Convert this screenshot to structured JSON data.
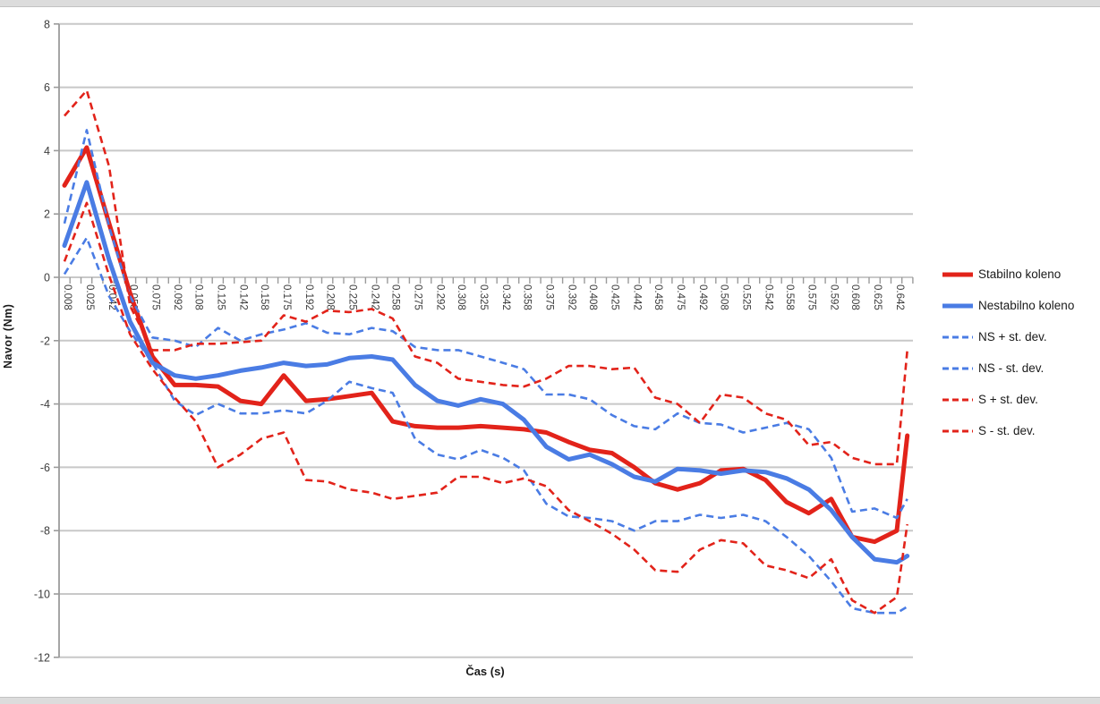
{
  "window": {
    "top_strip": "window-edge",
    "bottom_strip": "window-edge"
  },
  "chart_data": {
    "type": "line",
    "title": "",
    "xlabel": "Čas (s)",
    "ylabel": "Navor (Nm)",
    "ylim": [
      -12,
      8
    ],
    "grid": "horizontal",
    "legend_position": "right",
    "y_ticks": [
      8,
      6,
      4,
      2,
      0,
      -2,
      -4,
      -6,
      -8,
      -10,
      -12
    ],
    "x_tick_labels": [
      "0.008",
      "0.025",
      "0.042",
      "0.058",
      "0.075",
      "0.092",
      "0.108",
      "0.125",
      "0.142",
      "0.158",
      "0.175",
      "0.192",
      "0.208",
      "0.225",
      "0.242",
      "0.258",
      "0.275",
      "0.292",
      "0.308",
      "0.325",
      "0.342",
      "0.358",
      "0.375",
      "0.392",
      "0.408",
      "0.425",
      "0.442",
      "0.458",
      "0.475",
      "0.492",
      "0.508",
      "0.525",
      "0.542",
      "0.558",
      "0.575",
      "0.592",
      "0.608",
      "0.625",
      "0.642"
    ],
    "x": [
      0.008,
      0.025,
      0.042,
      0.058,
      0.075,
      0.092,
      0.108,
      0.125,
      0.142,
      0.158,
      0.175,
      0.192,
      0.208,
      0.225,
      0.242,
      0.258,
      0.275,
      0.292,
      0.308,
      0.325,
      0.342,
      0.358,
      0.375,
      0.392,
      0.408,
      0.425,
      0.442,
      0.458,
      0.475,
      0.492,
      0.508,
      0.525,
      0.542,
      0.558,
      0.575,
      0.592,
      0.608,
      0.625,
      0.642,
      0.65
    ],
    "colors": {
      "stable_red": "#e2231a",
      "unstable_blue": "#4a7ce4",
      "grid": "#c8c8c8",
      "axis": "#9b9b9b",
      "tick_text": "#3d3d3d"
    },
    "series": [
      {
        "name": "Stabilno koleno",
        "style": "solid",
        "color_key": "stable_red",
        "values": [
          2.9,
          4.1,
          1.7,
          -0.5,
          -2.5,
          -3.4,
          -3.4,
          -3.45,
          -3.9,
          -4.0,
          -3.1,
          -3.9,
          -3.85,
          -3.75,
          -3.65,
          -4.55,
          -4.7,
          -4.75,
          -4.75,
          -4.7,
          -4.75,
          -4.8,
          -4.9,
          -5.2,
          -5.45,
          -5.55,
          -6.0,
          -6.5,
          -6.7,
          -6.5,
          -6.1,
          -6.05,
          -6.4,
          -7.1,
          -7.45,
          -7.0,
          -8.2,
          -8.35,
          -8.0,
          -5.0
        ]
      },
      {
        "name": "Nestabilno koleno",
        "style": "solid",
        "color_key": "unstable_blue",
        "values": [
          1.0,
          3.0,
          0.55,
          -1.4,
          -2.7,
          -3.1,
          -3.2,
          -3.1,
          -2.95,
          -2.85,
          -2.7,
          -2.8,
          -2.75,
          -2.55,
          -2.5,
          -2.6,
          -3.4,
          -3.9,
          -4.05,
          -3.85,
          -4.0,
          -4.5,
          -5.35,
          -5.75,
          -5.6,
          -5.9,
          -6.3,
          -6.45,
          -6.05,
          -6.1,
          -6.2,
          -6.1,
          -6.15,
          -6.35,
          -6.7,
          -7.35,
          -8.2,
          -8.9,
          -9.0,
          -8.8
        ]
      },
      {
        "name": "NS + st. dev.",
        "style": "dashed",
        "color_key": "unstable_blue",
        "values": [
          1.7,
          4.65,
          1.6,
          -0.6,
          -1.9,
          -2.0,
          -2.2,
          -1.6,
          -2.0,
          -1.8,
          -1.65,
          -1.45,
          -1.75,
          -1.8,
          -1.6,
          -1.7,
          -2.2,
          -2.3,
          -2.3,
          -2.5,
          -2.7,
          -2.9,
          -3.7,
          -3.7,
          -3.85,
          -4.35,
          -4.7,
          -4.8,
          -4.3,
          -4.6,
          -4.65,
          -4.9,
          -4.75,
          -4.6,
          -4.8,
          -5.7,
          -7.4,
          -7.3,
          -7.6,
          -7.0
        ]
      },
      {
        "name": "NS - st. dev.",
        "style": "dashed",
        "color_key": "unstable_blue",
        "values": [
          0.1,
          1.25,
          -0.6,
          -1.7,
          -2.7,
          -3.9,
          -4.35,
          -4.0,
          -4.3,
          -4.3,
          -4.2,
          -4.3,
          -3.9,
          -3.3,
          -3.5,
          -3.65,
          -5.1,
          -5.6,
          -5.75,
          -5.45,
          -5.7,
          -6.1,
          -7.15,
          -7.55,
          -7.6,
          -7.7,
          -8.0,
          -7.7,
          -7.7,
          -7.5,
          -7.6,
          -7.5,
          -7.7,
          -8.2,
          -8.8,
          -9.6,
          -10.45,
          -10.6,
          -10.6,
          -10.4
        ]
      },
      {
        "name": "S + st. dev.",
        "style": "dashed",
        "color_key": "stable_red",
        "values": [
          5.1,
          5.9,
          3.5,
          -0.9,
          -2.3,
          -2.3,
          -2.1,
          -2.1,
          -2.05,
          -2.0,
          -1.2,
          -1.4,
          -1.05,
          -1.1,
          -1.0,
          -1.3,
          -2.5,
          -2.7,
          -3.2,
          -3.3,
          -3.4,
          -3.45,
          -3.2,
          -2.8,
          -2.8,
          -2.9,
          -2.85,
          -3.8,
          -4.0,
          -4.6,
          -3.7,
          -3.8,
          -4.3,
          -4.5,
          -5.3,
          -5.2,
          -5.7,
          -5.9,
          -5.9,
          -2.3
        ]
      },
      {
        "name": "S - st. dev.",
        "style": "dashed",
        "color_key": "stable_red",
        "values": [
          0.5,
          2.35,
          0.05,
          -1.8,
          -2.9,
          -3.8,
          -4.55,
          -6.0,
          -5.6,
          -5.1,
          -4.9,
          -6.4,
          -6.45,
          -6.7,
          -6.8,
          -7.0,
          -6.9,
          -6.8,
          -6.3,
          -6.3,
          -6.5,
          -6.35,
          -6.6,
          -7.35,
          -7.7,
          -8.1,
          -8.6,
          -9.25,
          -9.3,
          -8.6,
          -8.3,
          -8.4,
          -9.1,
          -9.25,
          -9.5,
          -8.9,
          -10.2,
          -10.6,
          -10.1,
          -7.8
        ]
      }
    ]
  }
}
